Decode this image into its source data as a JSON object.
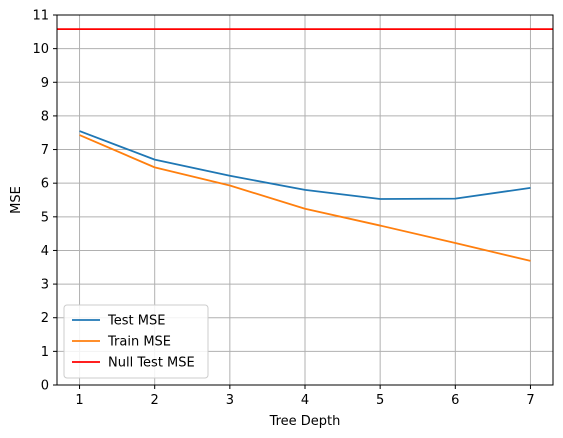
{
  "chart_data": {
    "type": "line",
    "xlabel": "Tree Depth",
    "ylabel": "MSE",
    "x": [
      1,
      2,
      3,
      4,
      5,
      6,
      7
    ],
    "xlim": [
      0.7,
      7.3
    ],
    "ylim": [
      0,
      11
    ],
    "xticks": [
      "1",
      "2",
      "3",
      "4",
      "5",
      "6",
      "7"
    ],
    "yticks": [
      "0",
      "1",
      "2",
      "3",
      "4",
      "5",
      "6",
      "7",
      "8",
      "9",
      "10",
      "11"
    ],
    "grid": true,
    "legend_position": "lower-left",
    "series": [
      {
        "name": "Test MSE",
        "color": "#1f77b4",
        "values": [
          7.55,
          6.7,
          6.22,
          5.8,
          5.53,
          5.54,
          5.86
        ]
      },
      {
        "name": "Train MSE",
        "color": "#ff7f0e",
        "values": [
          7.43,
          6.47,
          5.93,
          5.24,
          4.74,
          4.22,
          3.69
        ]
      }
    ],
    "hlines": [
      {
        "name": "Null Test MSE",
        "color": "#ff0000",
        "value": 10.58
      }
    ]
  }
}
